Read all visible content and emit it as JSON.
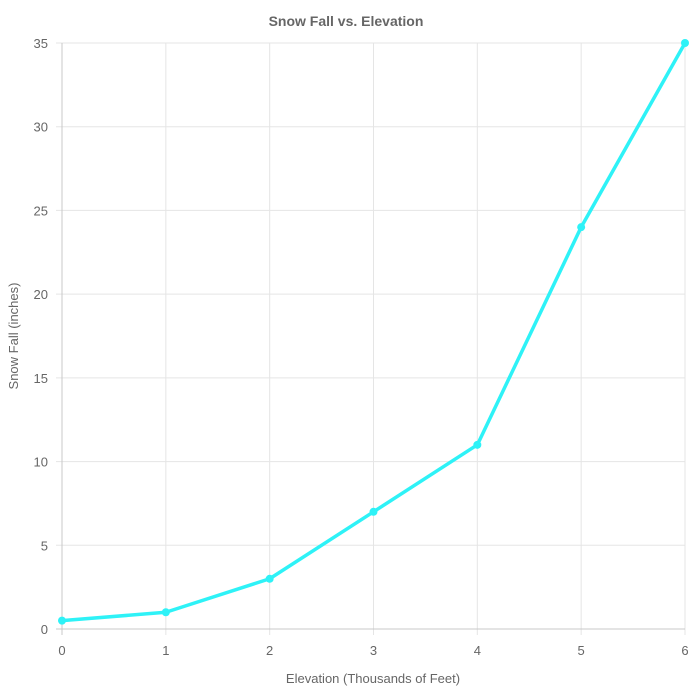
{
  "chart_data": {
    "type": "line",
    "title": "Snow Fall vs. Elevation",
    "xlabel": "Elevation (Thousands of Feet)",
    "ylabel": "Snow Fall (inches)",
    "x": [
      0,
      1,
      2,
      3,
      4,
      5,
      6
    ],
    "xlim": [
      0,
      6
    ],
    "ylim": [
      0,
      35
    ],
    "x_ticks": [
      "0",
      "1",
      "2",
      "3",
      "4",
      "5",
      "6"
    ],
    "y_ticks": [
      "0",
      "5",
      "10",
      "15",
      "20",
      "25",
      "30",
      "35"
    ],
    "grid": true,
    "series": [
      {
        "values": [
          0.5,
          1,
          3,
          7,
          11,
          24,
          35
        ],
        "color": "#2ef2f7"
      }
    ]
  }
}
